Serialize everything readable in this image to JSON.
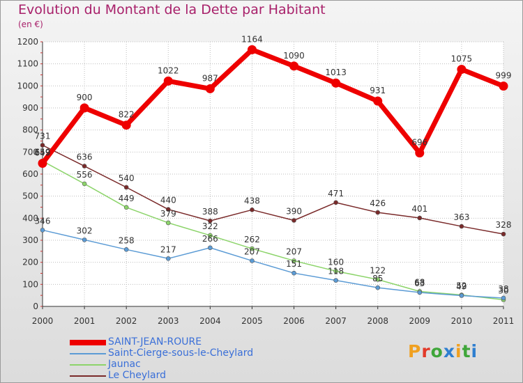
{
  "title": "Evolution du Montant de la Dette par Habitant",
  "subtitle": "(en €)",
  "logo": {
    "text": "Proxiti",
    "letter_colors": [
      "#f0a020",
      "#e23a2a",
      "#3fa63a",
      "#2f7fd0",
      "#f0a020",
      "#3fa63a",
      "#2f7fd0"
    ]
  },
  "chart_data": {
    "type": "line",
    "x": [
      "2000",
      "2001",
      "2002",
      "2003",
      "2004",
      "2005",
      "2006",
      "2007",
      "2008",
      "2009",
      "2010",
      "2011"
    ],
    "ylim": [
      0,
      1200
    ],
    "yticks": [
      0,
      100,
      200,
      300,
      400,
      500,
      600,
      700,
      800,
      900,
      1000,
      1100,
      1200
    ],
    "grid": true,
    "legend_placement": "bottom-left",
    "series": [
      {
        "name": "SAINT-JEAN-ROURE",
        "color": "#ee0000",
        "values": [
          649,
          900,
          822,
          1022,
          987,
          1164,
          1090,
          1013,
          931,
          696,
          1075,
          999
        ]
      },
      {
        "name": "Saint-Cierge-sous-le-Cheylard",
        "color": "#5b9bd5",
        "values": [
          346,
          302,
          258,
          217,
          266,
          207,
          151,
          118,
          85,
          63,
          49,
          38
        ]
      },
      {
        "name": "Jaunac",
        "color": "#8cd46a",
        "values": [
          659,
          556,
          449,
          379,
          322,
          262,
          207,
          160,
          122,
          68,
          52,
          30
        ]
      },
      {
        "name": "Le Cheylard",
        "color": "#7a2a2a",
        "values": [
          731,
          636,
          540,
          440,
          388,
          438,
          390,
          471,
          426,
          401,
          363,
          328
        ]
      }
    ]
  }
}
